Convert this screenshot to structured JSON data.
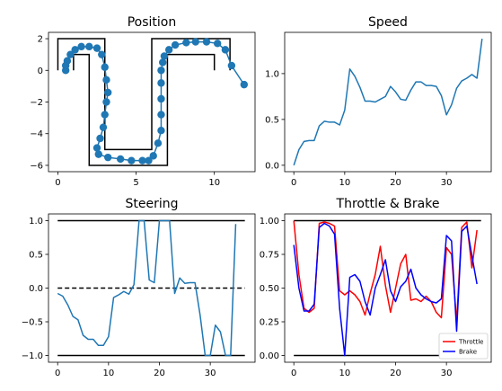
{
  "colors": {
    "series_blue": "#1f77b4",
    "black": "#000000",
    "throttle": "#ff0000",
    "brake": "#0000ff"
  },
  "chart_data": [
    {
      "type": "line",
      "title": "Position",
      "xlim": [
        -0.6,
        12.6
      ],
      "ylim": [
        -6.4,
        2.4
      ],
      "xticks": [
        "0",
        "5",
        "10"
      ],
      "xtick_values": [
        0,
        5,
        10
      ],
      "yticks": [
        "−6",
        "−4",
        "−2",
        "0",
        "2"
      ],
      "ytick_values": [
        -6,
        -4,
        -2,
        0,
        2
      ],
      "track_outer": [
        [
          0,
          0
        ],
        [
          0,
          2
        ],
        [
          3,
          2
        ],
        [
          3,
          -5
        ],
        [
          6,
          -5
        ],
        [
          6,
          2
        ],
        [
          11,
          2
        ],
        [
          11,
          0
        ]
      ],
      "track_inner": [
        [
          1,
          0
        ],
        [
          1,
          1
        ],
        [
          2,
          1
        ],
        [
          2,
          -6
        ],
        [
          7,
          -6
        ],
        [
          7,
          1
        ],
        [
          10,
          1
        ],
        [
          10,
          0
        ]
      ],
      "path": [
        [
          0.5,
          0.0
        ],
        [
          0.5,
          0.3
        ],
        [
          0.6,
          0.6
        ],
        [
          0.8,
          1.0
        ],
        [
          1.1,
          1.3
        ],
        [
          1.5,
          1.5
        ],
        [
          2.0,
          1.5
        ],
        [
          2.5,
          1.4
        ],
        [
          2.8,
          1.0
        ],
        [
          3.0,
          0.2
        ],
        [
          3.1,
          -0.6
        ],
        [
          3.2,
          -1.4
        ],
        [
          3.1,
          -2.0
        ],
        [
          3.0,
          -2.8
        ],
        [
          2.9,
          -3.6
        ],
        [
          2.7,
          -4.3
        ],
        [
          2.5,
          -4.9
        ],
        [
          2.6,
          -5.3
        ],
        [
          3.2,
          -5.5
        ],
        [
          4.0,
          -5.6
        ],
        [
          4.7,
          -5.7
        ],
        [
          5.4,
          -5.7
        ],
        [
          5.8,
          -5.7
        ],
        [
          6.1,
          -5.4
        ],
        [
          6.4,
          -4.6
        ],
        [
          6.6,
          -3.8
        ],
        [
          6.6,
          -2.8
        ],
        [
          6.6,
          -1.8
        ],
        [
          6.6,
          -0.8
        ],
        [
          6.6,
          0.0
        ],
        [
          6.7,
          0.5
        ],
        [
          6.8,
          0.9
        ],
        [
          7.1,
          1.3
        ],
        [
          7.5,
          1.6
        ],
        [
          8.2,
          1.75
        ],
        [
          8.8,
          1.8
        ],
        [
          9.5,
          1.8
        ],
        [
          10.2,
          1.7
        ],
        [
          10.7,
          1.3
        ],
        [
          11.1,
          0.3
        ],
        [
          11.9,
          -0.9
        ]
      ],
      "markers": [
        [
          0.5,
          0.0
        ],
        [
          0.5,
          0.3
        ],
        [
          0.6,
          0.6
        ],
        [
          0.8,
          1.0
        ],
        [
          1.1,
          1.3
        ],
        [
          1.5,
          1.5
        ],
        [
          2.0,
          1.5
        ],
        [
          2.5,
          1.4
        ],
        [
          2.8,
          1.0
        ],
        [
          3.0,
          0.2
        ],
        [
          3.1,
          -0.6
        ],
        [
          3.2,
          -1.4
        ],
        [
          3.1,
          -2.0
        ],
        [
          3.0,
          -2.8
        ],
        [
          2.9,
          -3.6
        ],
        [
          2.7,
          -4.3
        ],
        [
          2.5,
          -4.9
        ],
        [
          2.6,
          -5.3
        ],
        [
          3.2,
          -5.5
        ],
        [
          4.0,
          -5.6
        ],
        [
          4.7,
          -5.7
        ],
        [
          5.4,
          -5.7
        ],
        [
          5.8,
          -5.7
        ],
        [
          6.1,
          -5.4
        ],
        [
          6.4,
          -4.6
        ],
        [
          6.6,
          -3.8
        ],
        [
          6.6,
          -2.8
        ],
        [
          6.6,
          -1.8
        ],
        [
          6.6,
          -0.8
        ],
        [
          6.6,
          0.0
        ],
        [
          6.7,
          0.5
        ],
        [
          6.8,
          0.9
        ],
        [
          7.1,
          1.3
        ],
        [
          7.5,
          1.6
        ],
        [
          8.2,
          1.75
        ],
        [
          8.8,
          1.8
        ],
        [
          9.5,
          1.8
        ],
        [
          10.2,
          1.7
        ],
        [
          10.7,
          1.3
        ],
        [
          11.1,
          0.3
        ],
        [
          11.9,
          -0.9
        ]
      ]
    },
    {
      "type": "line",
      "title": "Speed",
      "xlim": [
        -1.8,
        38.8
      ],
      "ylim": [
        -0.07,
        1.45
      ],
      "xticks": [
        "0",
        "10",
        "20",
        "30"
      ],
      "xtick_values": [
        0,
        10,
        20,
        30
      ],
      "yticks": [
        "0.0",
        "0.5",
        "1.0"
      ],
      "ytick_values": [
        0,
        0.5,
        1.0
      ],
      "series": [
        {
          "values": [
            0.0,
            0.17,
            0.26,
            0.27,
            0.27,
            0.43,
            0.48,
            0.47,
            0.47,
            0.44,
            0.6,
            1.05,
            0.97,
            0.85,
            0.7,
            0.7,
            0.69,
            0.72,
            0.75,
            0.86,
            0.8,
            0.72,
            0.71,
            0.82,
            0.91,
            0.91,
            0.87,
            0.87,
            0.86,
            0.76,
            0.55,
            0.66,
            0.84,
            0.92,
            0.95,
            0.99,
            0.95,
            1.38
          ]
        }
      ]
    },
    {
      "type": "line",
      "title": "Steering",
      "xlim": [
        -1.8,
        38.8
      ],
      "ylim": [
        -1.1,
        1.1
      ],
      "xticks": [
        "0",
        "10",
        "20",
        "30"
      ],
      "xtick_values": [
        0,
        10,
        20,
        30
      ],
      "yticks": [
        "−1.0",
        "−0.5",
        "0.0",
        "0.5",
        "1.0"
      ],
      "ytick_values": [
        -1,
        -0.5,
        0,
        0.5,
        1.0
      ],
      "reference_lines": [
        1.0,
        -1.0
      ],
      "dashed_line": 0.0,
      "series": [
        {
          "values": [
            -0.08,
            -0.12,
            -0.25,
            -0.42,
            -0.47,
            -0.7,
            -0.76,
            -0.76,
            -0.85,
            -0.85,
            -0.72,
            -0.14,
            -0.1,
            -0.05,
            -0.09,
            0.05,
            1.0,
            1.0,
            0.12,
            0.08,
            1.0,
            1.0,
            1.0,
            -0.08,
            0.15,
            0.07,
            0.08,
            0.08,
            -0.4,
            -1.0,
            -1.0,
            -0.55,
            -0.65,
            -1.0,
            -1.0,
            0.95
          ]
        }
      ]
    },
    {
      "type": "line",
      "title": "Throttle & Brake",
      "xlim": [
        -1.8,
        38.8
      ],
      "ylim": [
        -0.05,
        1.05
      ],
      "xticks": [
        "0",
        "10",
        "20",
        "30"
      ],
      "xtick_values": [
        0,
        10,
        20,
        30
      ],
      "yticks": [
        "0.00",
        "0.25",
        "0.50",
        "0.75",
        "1.00"
      ],
      "ytick_values": [
        0,
        0.25,
        0.5,
        0.75,
        1.0
      ],
      "reference_lines": [
        1.0,
        0.0
      ],
      "legend": {
        "position": "lower-right"
      },
      "series": [
        {
          "name": "Throttle",
          "color": "#ff0000",
          "values": [
            1.0,
            0.6,
            0.35,
            0.32,
            0.35,
            0.98,
            0.99,
            0.98,
            0.96,
            0.48,
            0.45,
            0.48,
            0.45,
            0.4,
            0.3,
            0.46,
            0.6,
            0.81,
            0.52,
            0.32,
            0.5,
            0.68,
            0.75,
            0.41,
            0.42,
            0.4,
            0.44,
            0.4,
            0.32,
            0.28,
            0.8,
            0.75,
            0.25,
            0.95,
            0.99,
            0.65,
            0.93
          ]
        },
        {
          "name": "Brake",
          "color": "#0000ff",
          "values": [
            0.82,
            0.5,
            0.33,
            0.33,
            0.38,
            0.95,
            0.98,
            0.96,
            0.9,
            0.35,
            0.0,
            0.58,
            0.6,
            0.55,
            0.4,
            0.3,
            0.5,
            0.6,
            0.71,
            0.48,
            0.4,
            0.51,
            0.55,
            0.64,
            0.5,
            0.45,
            0.42,
            0.4,
            0.39,
            0.42,
            0.89,
            0.85,
            0.18,
            0.92,
            0.96,
            0.74,
            0.53
          ]
        }
      ]
    }
  ]
}
